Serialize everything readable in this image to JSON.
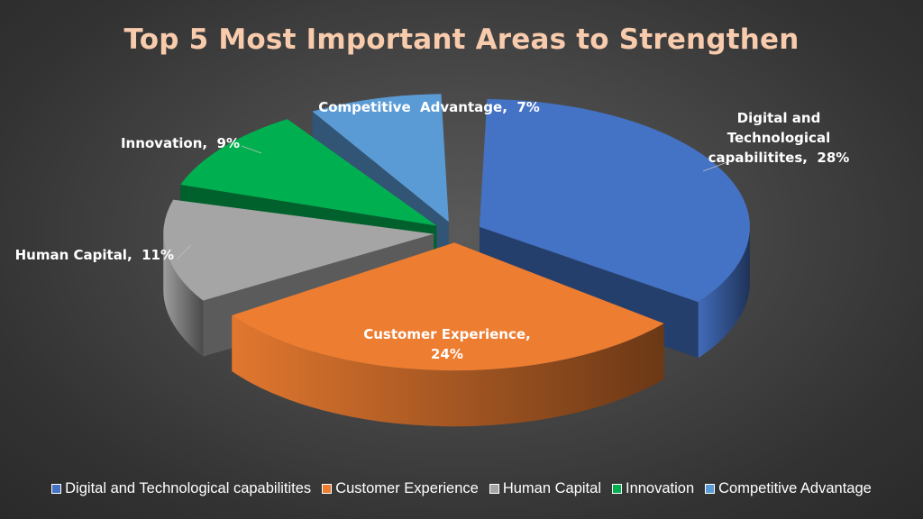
{
  "chart_data": {
    "type": "pie",
    "title": "Top 5 Most Important Areas to Strengthen",
    "categories": [
      "Digital and Technological capabilitites",
      "Customer Experience",
      "Human Capital",
      "Innovation",
      "Competitive Advantage"
    ],
    "values": [
      28,
      24,
      11,
      9,
      7
    ],
    "unit": "%",
    "colors": [
      "#4472c4",
      "#ed7d31",
      "#a5a5a5",
      "#00b050",
      "#5b9bd5"
    ],
    "data_labels": [
      [
        "Digital and",
        "Technological",
        "capabilitites,  28%"
      ],
      [
        "Customer Experience,",
        "24%"
      ],
      [
        "Human Capital,  11%"
      ],
      [
        "Innovation,  9%"
      ],
      [
        "Competitive  Advantage,  7%"
      ]
    ],
    "legend_position": "bottom",
    "style": "3d-exploded"
  }
}
